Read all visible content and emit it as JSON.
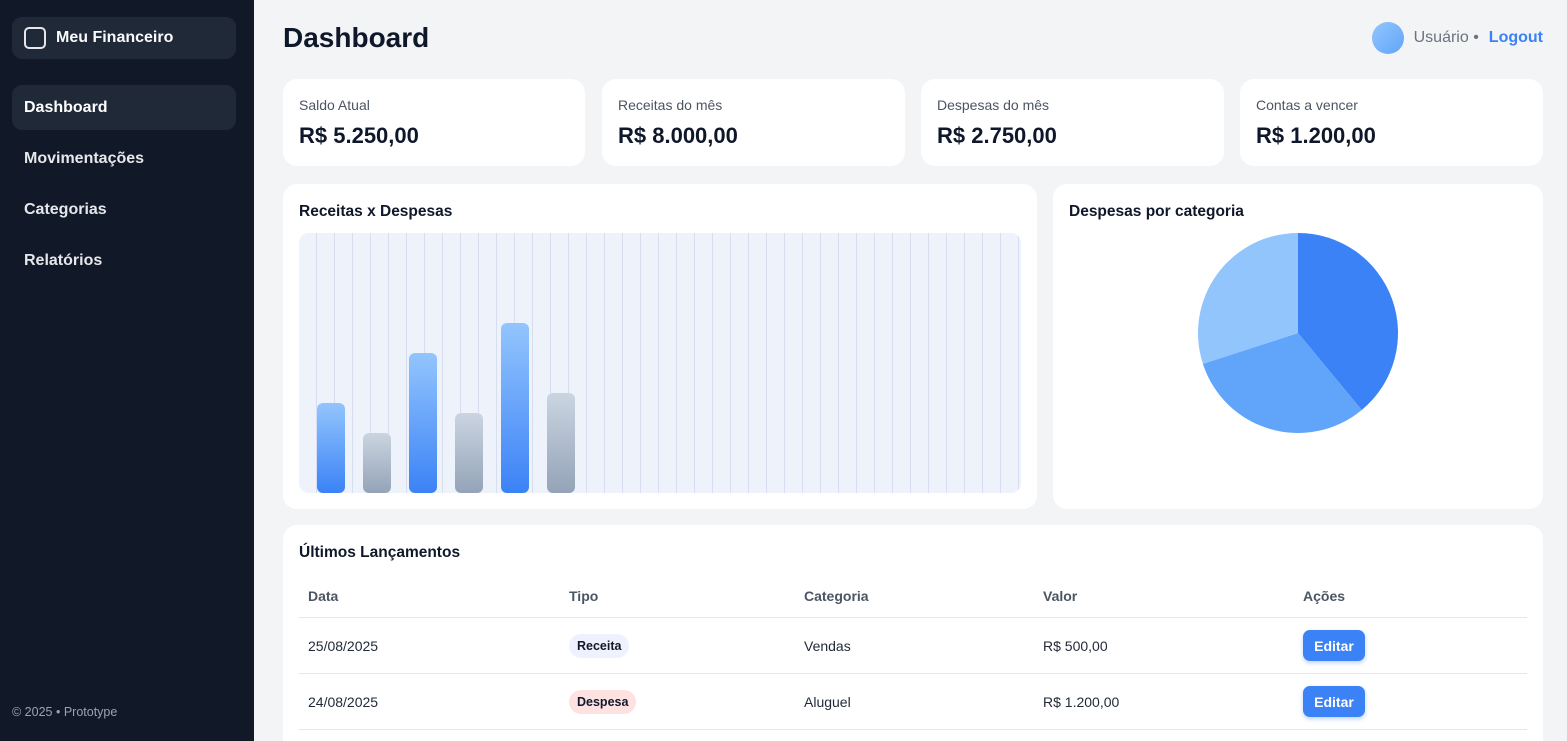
{
  "sidebar": {
    "brand": "Meu Financeiro",
    "items": [
      {
        "label": "Dashboard",
        "active": true
      },
      {
        "label": "Movimentações"
      },
      {
        "label": "Categorias"
      },
      {
        "label": "Relatórios"
      }
    ],
    "footer": "© 2025 • Prototype"
  },
  "header": {
    "title": "Dashboard",
    "user": "Usuário •",
    "logout": "Logout"
  },
  "kpis": [
    {
      "label": "Saldo Atual",
      "value": "R$ 5.250,00"
    },
    {
      "label": "Receitas do mês",
      "value": "R$ 8.000,00"
    },
    {
      "label": "Despesas do mês",
      "value": "R$ 2.750,00"
    },
    {
      "label": "Contas a vencer",
      "value": "R$ 1.200,00"
    }
  ],
  "bar_card": {
    "title": "Receitas x Despesas"
  },
  "pie_card": {
    "title": "Despesas por categoria"
  },
  "chart_data": [
    {
      "type": "bar",
      "title": "Receitas x Despesas",
      "values": [
        90,
        60,
        140,
        80,
        170,
        100
      ],
      "series_of_bar": [
        "receita",
        "despesa",
        "receita",
        "despesa",
        "receita",
        "despesa"
      ],
      "ylim": [
        0,
        260
      ],
      "grid": true,
      "colors": {
        "receita": [
          "#93c5fd",
          "#3b82f6"
        ],
        "despesa": [
          "#cbd5e1",
          "#94a3b8"
        ]
      }
    },
    {
      "type": "pie",
      "title": "Despesas por categoria",
      "values": [
        39,
        31,
        30
      ],
      "colors": [
        "#3b82f6",
        "#60a5fa",
        "#93c5fd"
      ]
    }
  ],
  "table": {
    "title": "Últimos Lançamentos",
    "headers": {
      "data": "Data",
      "tipo": "Tipo",
      "categoria": "Categoria",
      "valor": "Valor",
      "acoes": "Ações"
    },
    "rows": [
      {
        "data": "25/08/2025",
        "tipo": "Receita",
        "categoria": "Vendas",
        "valor": "R$ 500,00",
        "acao": "Editar"
      },
      {
        "data": "24/08/2025",
        "tipo": "Despesa",
        "categoria": "Aluguel",
        "valor": "R$ 1.200,00",
        "acao": "Editar"
      }
    ]
  }
}
